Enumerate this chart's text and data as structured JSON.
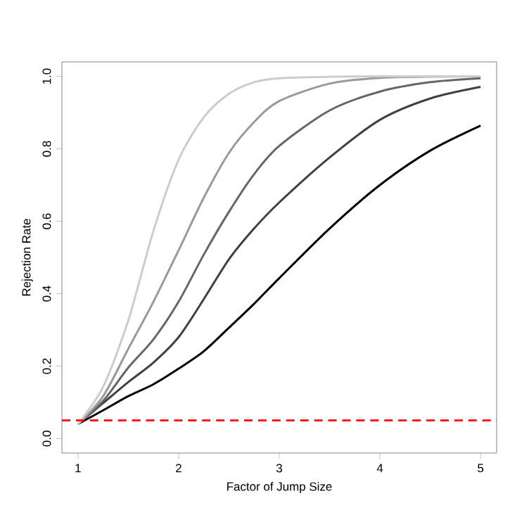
{
  "chart_data": {
    "type": "line",
    "xlabel": "Factor of Jump Size",
    "ylabel": "Rejection Rate",
    "xlim": [
      0.84,
      5.16
    ],
    "ylim": [
      -0.04,
      1.04
    ],
    "xticks": [
      1,
      2,
      3,
      4,
      5
    ],
    "yticks": [
      {
        "value": 0,
        "label": "0.0"
      },
      0.2,
      0.4,
      0.6,
      0.8,
      {
        "value": 1,
        "label": "1.0"
      }
    ],
    "grid": false,
    "marker": "none",
    "line_style": "solid",
    "x": [
      1,
      1.25,
      1.5,
      1.75,
      2,
      2.25,
      2.5,
      2.75,
      3,
      3.5,
      4,
      4.5,
      5
    ],
    "series": [
      {
        "color": "#000000",
        "values": [
          0.04,
          0.078,
          0.117,
          0.15,
          0.193,
          0.241,
          0.306,
          0.372,
          0.443,
          0.58,
          0.7,
          0.795,
          0.864
        ]
      },
      {
        "color": "#404040",
        "values": [
          0.04,
          0.098,
          0.156,
          0.21,
          0.28,
          0.385,
          0.495,
          0.58,
          0.652,
          0.776,
          0.88,
          0.939,
          0.971
        ]
      },
      {
        "color": "#666666",
        "values": [
          0.04,
          0.104,
          0.196,
          0.274,
          0.378,
          0.508,
          0.626,
          0.73,
          0.808,
          0.906,
          0.958,
          0.984,
          0.995
        ]
      },
      {
        "color": "#999999",
        "values": [
          0.04,
          0.117,
          0.248,
          0.378,
          0.52,
          0.665,
          0.789,
          0.874,
          0.932,
          0.98,
          0.996,
          0.999,
          1.0
        ]
      },
      {
        "color": "#cccccc",
        "values": [
          0.04,
          0.143,
          0.326,
          0.574,
          0.77,
          0.887,
          0.952,
          0.984,
          0.995,
          0.999,
          1.0,
          1.0,
          1.0
        ]
      }
    ],
    "ref_lines": [
      {
        "axis": "y",
        "value": 0.05,
        "color": "#ff0000",
        "line_style": "dashed"
      }
    ]
  }
}
